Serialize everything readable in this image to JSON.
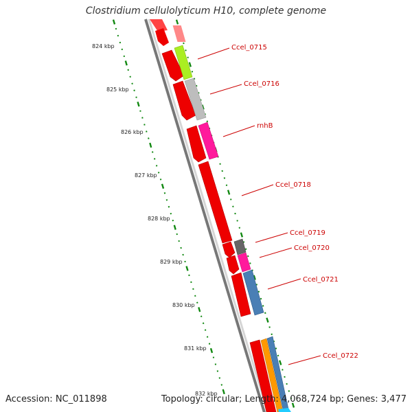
{
  "header": {
    "title": "Clostridium cellulolyticum H10, complete genome"
  },
  "footer": {
    "accession": "Accession: NC_011898",
    "summary": "Topology: circular; Length: 4,068,724 bp; Genes: 3,477"
  },
  "scale_labels": [
    "824 kbp",
    "825 kbp",
    "826 kbp",
    "827 kbp",
    "828 kbp",
    "829 kbp",
    "830 kbp",
    "831 kbp",
    "832 kbp"
  ],
  "genes": [
    {
      "label": "Ccel_0715",
      "color": "#aaee22"
    },
    {
      "label": "Ccel_0716",
      "color": "#bdbdbd"
    },
    {
      "label": "rnhB",
      "color": "#ff1a9c"
    },
    {
      "label": "Ccel_0718",
      "color": "#ff0000"
    },
    {
      "label": "Ccel_0719",
      "color": "#666666"
    },
    {
      "label": "Ccel_0720",
      "color": "#ff1a9c"
    },
    {
      "label": "Ccel_0721",
      "color": "#4a7fb5"
    },
    {
      "label": "Ccel_0722",
      "color": "#4a7fb5"
    }
  ],
  "colors": {
    "cds": "#ff0000",
    "backbone": "#999999",
    "tick": "#118811",
    "label": "#cc0000",
    "pink": "#ff8888",
    "orange": "#ff9900",
    "cyan": "#22ccff"
  }
}
